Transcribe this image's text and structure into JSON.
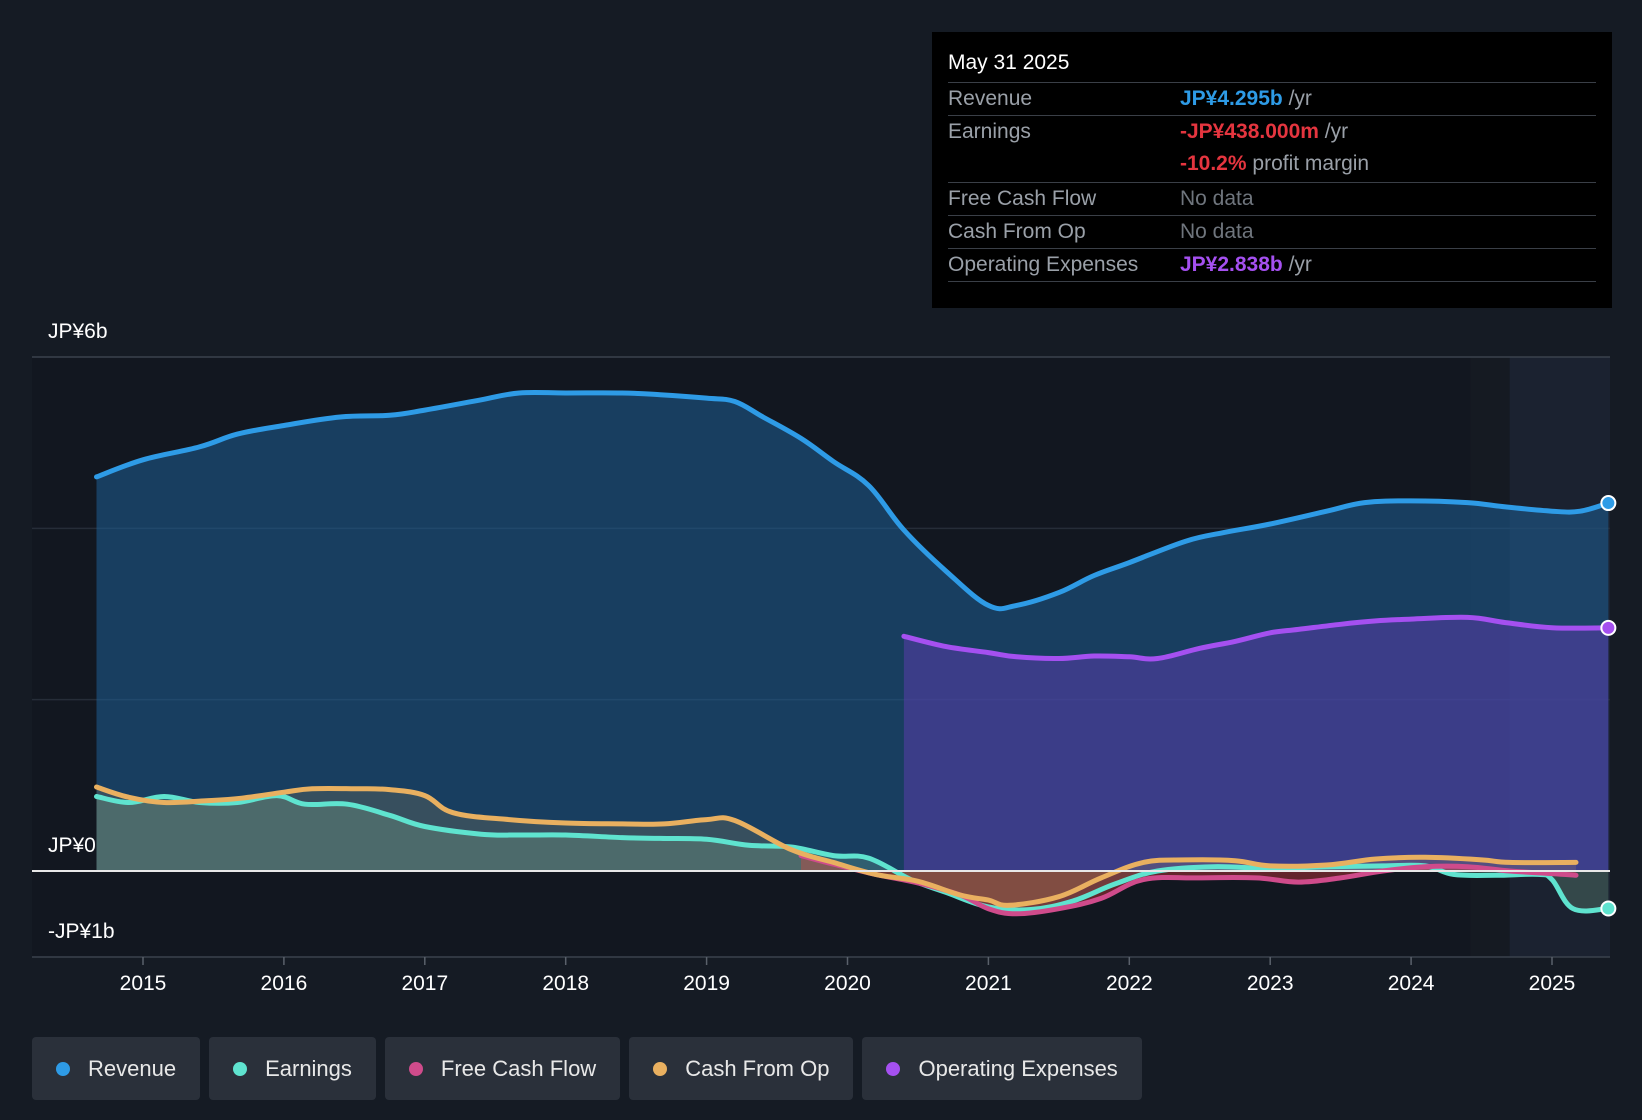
{
  "tooltip": {
    "date": "May 31 2025",
    "revenue_label": "Revenue",
    "revenue_value": "JP¥4.295b",
    "revenue_unit": "/yr",
    "earnings_label": "Earnings",
    "earnings_value": "-JP¥438.000m",
    "earnings_unit": "/yr",
    "margin_value": "-10.2%",
    "margin_unit": "profit margin",
    "fcf_label": "Free Cash Flow",
    "fcf_value": "No data",
    "cfo_label": "Cash From Op",
    "cfo_value": "No data",
    "opex_label": "Operating Expenses",
    "opex_value": "JP¥2.838b",
    "opex_unit": "/yr"
  },
  "legend": [
    {
      "label": "Revenue",
      "color": "#2e9be6"
    },
    {
      "label": "Earnings",
      "color": "#5fe3cf"
    },
    {
      "label": "Free Cash Flow",
      "color": "#cf4b8b"
    },
    {
      "label": "Cash From Op",
      "color": "#e9b060"
    },
    {
      "label": "Operating Expenses",
      "color": "#a550f0"
    }
  ],
  "chart_data": {
    "type": "line",
    "title": "",
    "xlabel": "",
    "ylabel": "",
    "ylim": [
      -1,
      6
    ],
    "y_tick_labels": [
      "JP¥6b",
      "JP¥0",
      "-JP¥1b"
    ],
    "x_tick_labels": [
      "2015",
      "2016",
      "2017",
      "2018",
      "2019",
      "2020",
      "2021",
      "2022",
      "2023",
      "2024",
      "2025"
    ],
    "series": [
      {
        "name": "Revenue",
        "color": "#2e9be6",
        "area": true,
        "x": [
          2014.67,
          2015.0,
          2015.4,
          2015.67,
          2016.0,
          2016.4,
          2016.75,
          2017.0,
          2017.4,
          2017.67,
          2018.0,
          2018.4,
          2018.67,
          2019.0,
          2019.2,
          2019.4,
          2019.67,
          2019.9,
          2020.15,
          2020.4,
          2020.7,
          2021.0,
          2021.2,
          2021.5,
          2021.75,
          2022.0,
          2022.4,
          2022.67,
          2023.0,
          2023.4,
          2023.67,
          2024.0,
          2024.4,
          2024.67,
          2025.0,
          2025.2,
          2025.4
        ],
        "y": [
          4.6,
          4.8,
          4.95,
          5.1,
          5.2,
          5.3,
          5.32,
          5.38,
          5.5,
          5.58,
          5.58,
          5.58,
          5.56,
          5.52,
          5.48,
          5.3,
          5.05,
          4.78,
          4.5,
          3.98,
          3.5,
          3.1,
          3.1,
          3.25,
          3.45,
          3.6,
          3.85,
          3.95,
          4.05,
          4.2,
          4.3,
          4.32,
          4.3,
          4.25,
          4.2,
          4.2,
          4.295
        ]
      },
      {
        "name": "Operating Expenses",
        "color": "#a550f0",
        "area": true,
        "x": [
          2020.4,
          2020.7,
          2021.0,
          2021.2,
          2021.5,
          2021.75,
          2022.0,
          2022.2,
          2022.5,
          2022.75,
          2023.0,
          2023.2,
          2023.5,
          2023.75,
          2024.0,
          2024.4,
          2024.67,
          2025.0,
          2025.4
        ],
        "y": [
          2.74,
          2.62,
          2.55,
          2.5,
          2.48,
          2.51,
          2.5,
          2.48,
          2.6,
          2.68,
          2.78,
          2.82,
          2.88,
          2.92,
          2.94,
          2.96,
          2.9,
          2.84,
          2.838
        ]
      },
      {
        "name": "Earnings",
        "color": "#5fe3cf",
        "area": true,
        "x": [
          2014.67,
          2014.9,
          2015.15,
          2015.4,
          2015.67,
          2015.95,
          2016.15,
          2016.45,
          2016.75,
          2017.0,
          2017.4,
          2017.67,
          2018.0,
          2018.4,
          2018.67,
          2019.0,
          2019.3,
          2019.6,
          2019.9,
          2020.15,
          2020.45,
          2020.7,
          2021.0,
          2021.3,
          2021.6,
          2021.9,
          2022.2,
          2022.6,
          2023.0,
          2023.4,
          2023.8,
          2024.1,
          2024.3,
          2024.6,
          2024.9,
          2025.0,
          2025.15,
          2025.4
        ],
        "y": [
          0.87,
          0.8,
          0.87,
          0.8,
          0.8,
          0.88,
          0.78,
          0.78,
          0.65,
          0.52,
          0.43,
          0.42,
          0.42,
          0.39,
          0.38,
          0.37,
          0.3,
          0.28,
          0.18,
          0.15,
          -0.1,
          -0.25,
          -0.42,
          -0.45,
          -0.35,
          -0.15,
          0.0,
          0.05,
          0.03,
          0.05,
          0.06,
          0.06,
          -0.04,
          -0.05,
          -0.04,
          -0.1,
          -0.44,
          -0.438
        ]
      },
      {
        "name": "Free Cash Flow",
        "color": "#cf4b8b",
        "area": true,
        "x": [
          2019.67,
          2019.9,
          2020.2,
          2020.5,
          2020.8,
          2021.0,
          2021.2,
          2021.5,
          2021.8,
          2022.1,
          2022.5,
          2022.9,
          2023.2,
          2023.5,
          2023.8,
          2024.1,
          2024.4,
          2024.7,
          2025.0,
          2025.17
        ],
        "y": [
          0.18,
          0.08,
          -0.04,
          -0.14,
          -0.28,
          -0.44,
          -0.5,
          -0.44,
          -0.32,
          -0.1,
          -0.08,
          -0.08,
          -0.13,
          -0.08,
          0.0,
          0.05,
          0.05,
          0.0,
          -0.03,
          -0.05
        ]
      },
      {
        "name": "Cash From Op",
        "color": "#e9b060",
        "area": true,
        "x": [
          2014.67,
          2014.9,
          2015.15,
          2015.45,
          2015.7,
          2016.0,
          2016.2,
          2016.5,
          2016.75,
          2017.0,
          2017.2,
          2017.6,
          2018.0,
          2018.4,
          2018.7,
          2019.0,
          2019.2,
          2019.6,
          2019.9,
          2020.2,
          2020.5,
          2020.8,
          2021.0,
          2021.15,
          2021.5,
          2021.8,
          2022.1,
          2022.4,
          2022.75,
          2023.0,
          2023.4,
          2023.75,
          2024.1,
          2024.5,
          2024.7,
          2025.17
        ],
        "y": [
          0.98,
          0.86,
          0.8,
          0.82,
          0.85,
          0.92,
          0.96,
          0.96,
          0.95,
          0.88,
          0.68,
          0.6,
          0.56,
          0.55,
          0.55,
          0.6,
          0.59,
          0.25,
          0.1,
          -0.04,
          -0.12,
          -0.28,
          -0.34,
          -0.4,
          -0.3,
          -0.08,
          0.1,
          0.13,
          0.12,
          0.06,
          0.07,
          0.14,
          0.16,
          0.13,
          0.1,
          0.1
        ]
      }
    ],
    "forecast_shade_start": 2024.42,
    "zero_label": "JP¥0"
  }
}
